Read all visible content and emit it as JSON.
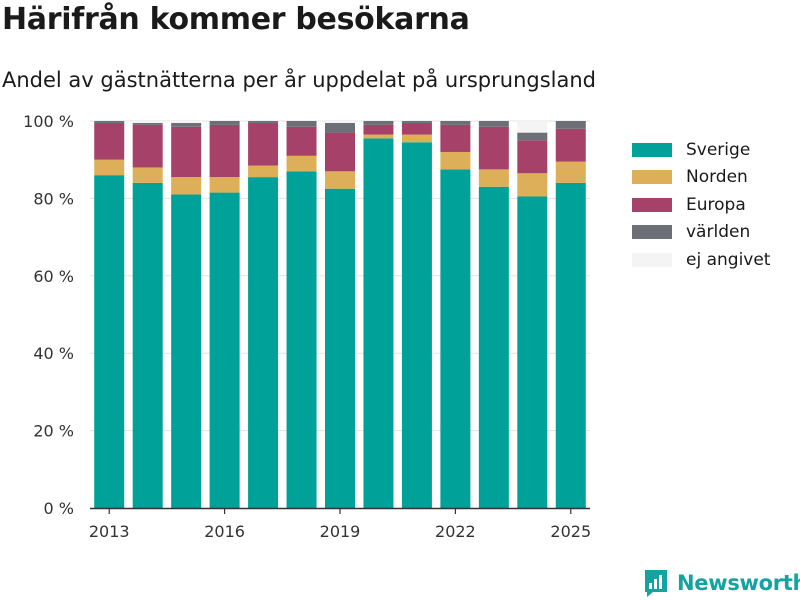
{
  "title": "Härifrån kommer besökarna",
  "subtitle": "Andel av gästnätterna per år uppdelat på ursprungsland",
  "brand": {
    "name": "Newsworthy",
    "icon": "newsworthy-logo-icon",
    "color": "#14a3a0"
  },
  "chart_data": {
    "type": "bar",
    "stacked": true,
    "categories": [
      "2013",
      "2014",
      "2015",
      "2016",
      "2017",
      "2018",
      "2019",
      "2020",
      "2021",
      "2022",
      "2023",
      "2024",
      "2025"
    ],
    "xticks": [
      "2013",
      "2016",
      "2019",
      "2022",
      "2025"
    ],
    "yticks": [
      0,
      20,
      40,
      60,
      80,
      100
    ],
    "ytick_suffix": " %",
    "ylim": [
      0,
      100
    ],
    "xlabel": "",
    "ylabel": "",
    "grid": true,
    "legend_position": "right",
    "series": [
      {
        "name": "Sverige",
        "color": "#00a198",
        "values": [
          86,
          84,
          81,
          81.5,
          85.5,
          87,
          82.5,
          95.5,
          94.5,
          87.5,
          83,
          80.5,
          84
        ]
      },
      {
        "name": "Norden",
        "color": "#dcaf58",
        "values": [
          4,
          4,
          4.5,
          4,
          3,
          4,
          4.5,
          1,
          2,
          4.5,
          4.5,
          6,
          5.5
        ]
      },
      {
        "name": "Europa",
        "color": "#a6416a",
        "values": [
          9.5,
          11,
          13,
          13.5,
          11,
          7.5,
          10,
          2.5,
          3,
          7,
          11,
          8.5,
          8.5
        ]
      },
      {
        "name": "världen",
        "color": "#6d6f76",
        "values": [
          0.5,
          0.5,
          1,
          1,
          0.5,
          1.5,
          2.5,
          1,
          0.5,
          1,
          1.5,
          2,
          2
        ]
      },
      {
        "name": "ej angivet",
        "color": "#f4f4f4",
        "values": [
          0,
          0.5,
          0.5,
          0,
          0,
          0,
          0.5,
          0,
          0,
          0,
          0,
          3,
          0
        ]
      }
    ]
  }
}
